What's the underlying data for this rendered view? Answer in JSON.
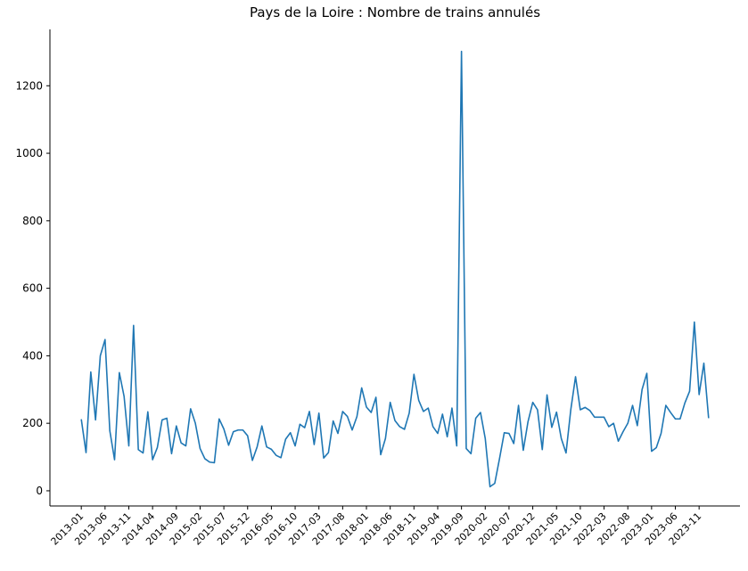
{
  "chart_data": {
    "type": "line",
    "title": "Pays de la Loire : Nombre de trains annulés",
    "categories": [
      "2013-01",
      null,
      null,
      null,
      null,
      "2013-06",
      null,
      null,
      null,
      null,
      "2013-11",
      null,
      null,
      null,
      null,
      "2014-04",
      null,
      null,
      null,
      null,
      "2014-09",
      null,
      null,
      null,
      null,
      "2015-02",
      null,
      null,
      null,
      null,
      "2015-07",
      null,
      null,
      null,
      null,
      "2015-12",
      null,
      null,
      null,
      null,
      "2016-05",
      null,
      null,
      null,
      null,
      "2016-10",
      null,
      null,
      null,
      null,
      "2017-03",
      null,
      null,
      null,
      null,
      "2017-08",
      null,
      null,
      null,
      null,
      "2018-01",
      null,
      null,
      null,
      null,
      "2018-06",
      null,
      null,
      null,
      null,
      "2018-11",
      null,
      null,
      null,
      null,
      "2019-04",
      null,
      null,
      null,
      null,
      "2019-09",
      null,
      null,
      null,
      null,
      "2020-02",
      null,
      null,
      null,
      null,
      "2020-07",
      null,
      null,
      null,
      null,
      "2020-12",
      null,
      null,
      null,
      null,
      "2021-05",
      null,
      null,
      null,
      null,
      "2021-10",
      null,
      null,
      null,
      null,
      "2022-03",
      null,
      null,
      null,
      null,
      "2022-08",
      null,
      null,
      null,
      null,
      "2023-01",
      null,
      null,
      null,
      null,
      "2023-06",
      null,
      null,
      null,
      null,
      "2023-11",
      null,
      null
    ],
    "values": [
      212,
      113,
      352,
      210,
      400,
      448,
      178,
      92,
      350,
      280,
      133,
      490,
      122,
      112,
      234,
      92,
      128,
      210,
      215,
      110,
      192,
      142,
      133,
      243,
      200,
      125,
      95,
      85,
      83,
      213,
      183,
      135,
      175,
      180,
      180,
      163,
      90,
      130,
      192,
      130,
      123,
      105,
      98,
      153,
      172,
      133,
      197,
      187,
      235,
      137,
      230,
      97,
      113,
      207,
      170,
      235,
      220,
      180,
      220,
      305,
      248,
      232,
      277,
      107,
      155,
      262,
      208,
      190,
      182,
      230,
      345,
      268,
      235,
      245,
      190,
      170,
      227,
      160,
      245,
      133,
      1302,
      125,
      110,
      215,
      232,
      155,
      12,
      22,
      95,
      172,
      170,
      140,
      253,
      120,
      205,
      262,
      240,
      122,
      284,
      188,
      233,
      155,
      112,
      240,
      338,
      240,
      247,
      238,
      218,
      218,
      218,
      190,
      200,
      147,
      175,
      200,
      253,
      193,
      300,
      348,
      117,
      128,
      170,
      253,
      232,
      213,
      213,
      260,
      295,
      500,
      285,
      378,
      215
    ],
    "color": "#1f77b4",
    "ylim": [
      -45,
      1367
    ],
    "yticks": [
      0,
      200,
      400,
      600,
      800,
      1000,
      1200
    ],
    "grid": false
  }
}
